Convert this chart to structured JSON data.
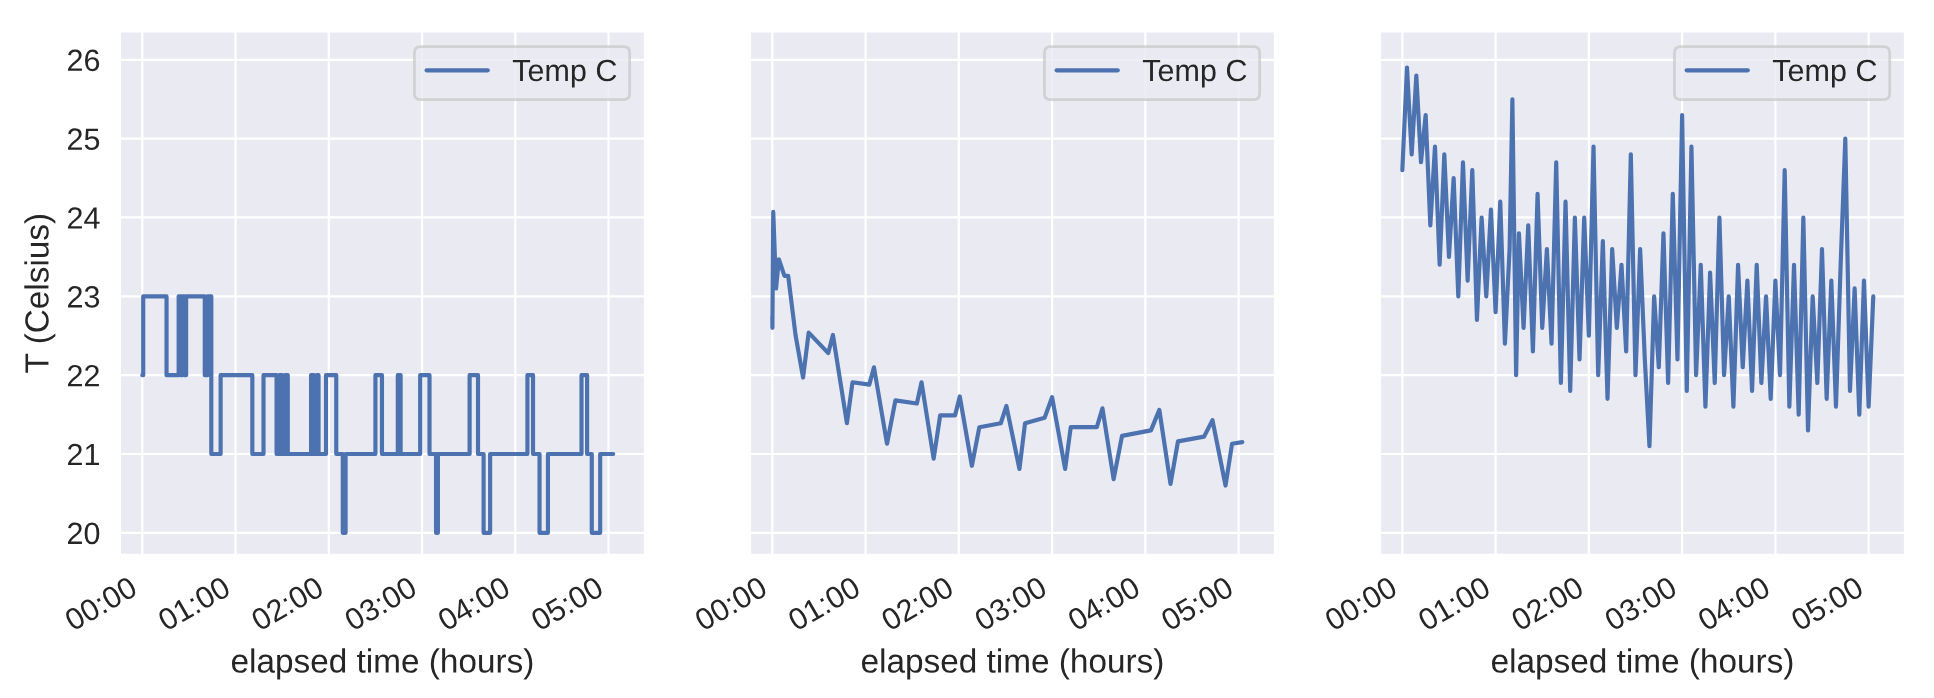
{
  "chart_data": [
    {
      "type": "step",
      "xlabel": "elapsed time (hours)",
      "ylabel": "T (Celsius)",
      "grid": true,
      "legend": "top right",
      "xlim": [
        -0.24,
        5.39
      ],
      "ylim": [
        19.72,
        26.36
      ],
      "yticks": [
        20,
        21,
        22,
        23,
        24,
        25,
        26
      ],
      "xticks": [
        {
          "value": 0,
          "label": "00:00"
        },
        {
          "value": 1,
          "label": "01:00"
        },
        {
          "value": 2,
          "label": "02:00"
        },
        {
          "value": 3,
          "label": "03:00"
        },
        {
          "value": 4,
          "label": "04:00"
        },
        {
          "value": 5,
          "label": "05:00"
        }
      ],
      "x": [
        0,
        0.01,
        0.26,
        0.39,
        0.41,
        0.43,
        0.45,
        0.47,
        0.65,
        0.67,
        0.7,
        0.74,
        0.84,
        1.18,
        1.3,
        1.44,
        1.47,
        1.5,
        1.53,
        1.56,
        1.67,
        1.81,
        1.84,
        1.87,
        1.89,
        1.97,
        2.08,
        2.15,
        2.18,
        2.5,
        2.57,
        2.74,
        2.77,
        2.98,
        3.08,
        3.15,
        3.17,
        3.51,
        3.6,
        3.66,
        3.73,
        4.13,
        4.19,
        4.26,
        4.35,
        4.71,
        4.77,
        4.82,
        4.91,
        5.05
      ],
      "series": [
        {
          "name": "Temp C",
          "color": "#4c72b0",
          "values": [
            22,
            23,
            22,
            23,
            22,
            23,
            22,
            23,
            23,
            22,
            23,
            21,
            22,
            21,
            22,
            21,
            22,
            21,
            22,
            21,
            21,
            22,
            21,
            22,
            21,
            22,
            21,
            20,
            21,
            22,
            21,
            22,
            21,
            22,
            21,
            20,
            21,
            22,
            21,
            20,
            21,
            22,
            21,
            20,
            21,
            22,
            21,
            20,
            21,
            21
          ]
        }
      ]
    },
    {
      "type": "line",
      "xlabel": "elapsed time (hours)",
      "grid": true,
      "legend": "top right",
      "tick_labels": "x",
      "xlim": [
        -0.24,
        5.39
      ],
      "ylim": [
        19.72,
        26.36
      ],
      "yticks": [
        20,
        21,
        22,
        23,
        24,
        25,
        26
      ],
      "xticks": [
        {
          "value": 0,
          "label": "00:00"
        },
        {
          "value": 1,
          "label": "01:00"
        },
        {
          "value": 2,
          "label": "02:00"
        },
        {
          "value": 3,
          "label": "03:00"
        },
        {
          "value": 4,
          "label": "04:00"
        },
        {
          "value": 5,
          "label": "05:00"
        }
      ],
      "x": [
        0,
        0.001,
        0.01,
        0.04,
        0.07,
        0.13,
        0.17,
        0.25,
        0.33,
        0.39,
        0.6,
        0.65,
        0.8,
        0.86,
        1.04,
        1.09,
        1.23,
        1.32,
        1.55,
        1.6,
        1.73,
        1.8,
        1.96,
        2.01,
        2.14,
        2.22,
        2.45,
        2.51,
        2.65,
        2.71,
        2.92,
        3.0,
        3.14,
        3.2,
        3.48,
        3.54,
        3.66,
        3.75,
        4.06,
        4.15,
        4.27,
        4.35,
        4.63,
        4.72,
        4.86,
        4.93,
        5.04
      ],
      "series": [
        {
          "name": "Temp C",
          "color": "#4c72b0",
          "values": [
            22.75,
            22.6,
            24.07,
            23.1,
            23.47,
            23.26,
            23.26,
            22.5,
            21.97,
            22.54,
            22.28,
            22.51,
            21.39,
            21.91,
            21.88,
            22.1,
            21.13,
            21.68,
            21.64,
            21.91,
            20.94,
            21.49,
            21.49,
            21.73,
            20.85,
            21.34,
            21.39,
            21.61,
            20.81,
            21.39,
            21.46,
            21.72,
            20.81,
            21.34,
            21.34,
            21.58,
            20.68,
            21.23,
            21.3,
            21.56,
            20.62,
            21.16,
            21.22,
            21.43,
            20.6,
            21.13,
            21.15
          ]
        }
      ]
    },
    {
      "type": "line",
      "xlabel": "elapsed time (hours)",
      "grid": true,
      "legend": "top right",
      "tick_labels": "x",
      "xlim": [
        -0.24,
        5.39
      ],
      "ylim": [
        19.72,
        26.36
      ],
      "yticks": [
        20,
        21,
        22,
        23,
        24,
        25,
        26
      ],
      "xticks": [
        {
          "value": 0,
          "label": "00:00"
        },
        {
          "value": 1,
          "label": "01:00"
        },
        {
          "value": 2,
          "label": "02:00"
        },
        {
          "value": 3,
          "label": "03:00"
        },
        {
          "value": 4,
          "label": "04:00"
        },
        {
          "value": 5,
          "label": "05:00"
        }
      ],
      "x": [
        0,
        0.05,
        0.1,
        0.15,
        0.2,
        0.25,
        0.3,
        0.35,
        0.4,
        0.45,
        0.5,
        0.55,
        0.6,
        0.65,
        0.7,
        0.75,
        0.8,
        0.85,
        0.9,
        0.95,
        1.0,
        1.05,
        1.1,
        1.15,
        1.18,
        1.22,
        1.25,
        1.3,
        1.35,
        1.4,
        1.45,
        1.5,
        1.55,
        1.6,
        1.65,
        1.7,
        1.75,
        1.8,
        1.85,
        1.9,
        1.95,
        2.0,
        2.05,
        2.1,
        2.15,
        2.2,
        2.25,
        2.3,
        2.35,
        2.4,
        2.45,
        2.5,
        2.55,
        2.6,
        2.65,
        2.7,
        2.75,
        2.8,
        2.85,
        2.9,
        2.95,
        3.0,
        3.05,
        3.1,
        3.15,
        3.2,
        3.25,
        3.3,
        3.35,
        3.4,
        3.45,
        3.5,
        3.55,
        3.6,
        3.65,
        3.7,
        3.75,
        3.8,
        3.85,
        3.9,
        3.95,
        4.0,
        4.05,
        4.1,
        4.15,
        4.2,
        4.25,
        4.3,
        4.35,
        4.4,
        4.45,
        4.5,
        4.55,
        4.6,
        4.65,
        4.7,
        4.75,
        4.8,
        4.85,
        4.9,
        4.95,
        5.0,
        5.05
      ],
      "series": [
        {
          "name": "Temp C",
          "color": "#4c72b0",
          "values": [
            24.6,
            25.9,
            24.8,
            25.8,
            24.7,
            25.3,
            23.9,
            24.9,
            23.4,
            24.8,
            23.5,
            24.5,
            23.0,
            24.7,
            23.2,
            24.6,
            22.7,
            24.0,
            23.0,
            24.1,
            22.8,
            24.2,
            22.4,
            23.6,
            25.5,
            22.0,
            23.8,
            22.6,
            23.9,
            22.3,
            24.3,
            22.6,
            23.6,
            22.4,
            24.7,
            21.9,
            24.2,
            21.8,
            24.0,
            22.2,
            24.0,
            22.5,
            24.9,
            22.0,
            23.7,
            21.7,
            23.6,
            22.6,
            23.4,
            22.3,
            24.8,
            22.0,
            23.6,
            22.2,
            21.1,
            23.0,
            22.1,
            23.8,
            21.9,
            24.3,
            22.2,
            25.3,
            21.8,
            24.9,
            22.0,
            23.4,
            21.6,
            23.3,
            21.9,
            24.0,
            22.0,
            23.0,
            21.6,
            23.4,
            22.1,
            23.2,
            21.8,
            23.4,
            21.9,
            23.0,
            21.7,
            23.2,
            22.0,
            24.6,
            21.6,
            23.4,
            21.5,
            24.0,
            21.3,
            23.0,
            21.9,
            23.6,
            21.7,
            23.2,
            21.6,
            23.4,
            25.0,
            21.8,
            23.1,
            21.5,
            23.2,
            21.6,
            23.0
          ]
        }
      ]
    }
  ]
}
